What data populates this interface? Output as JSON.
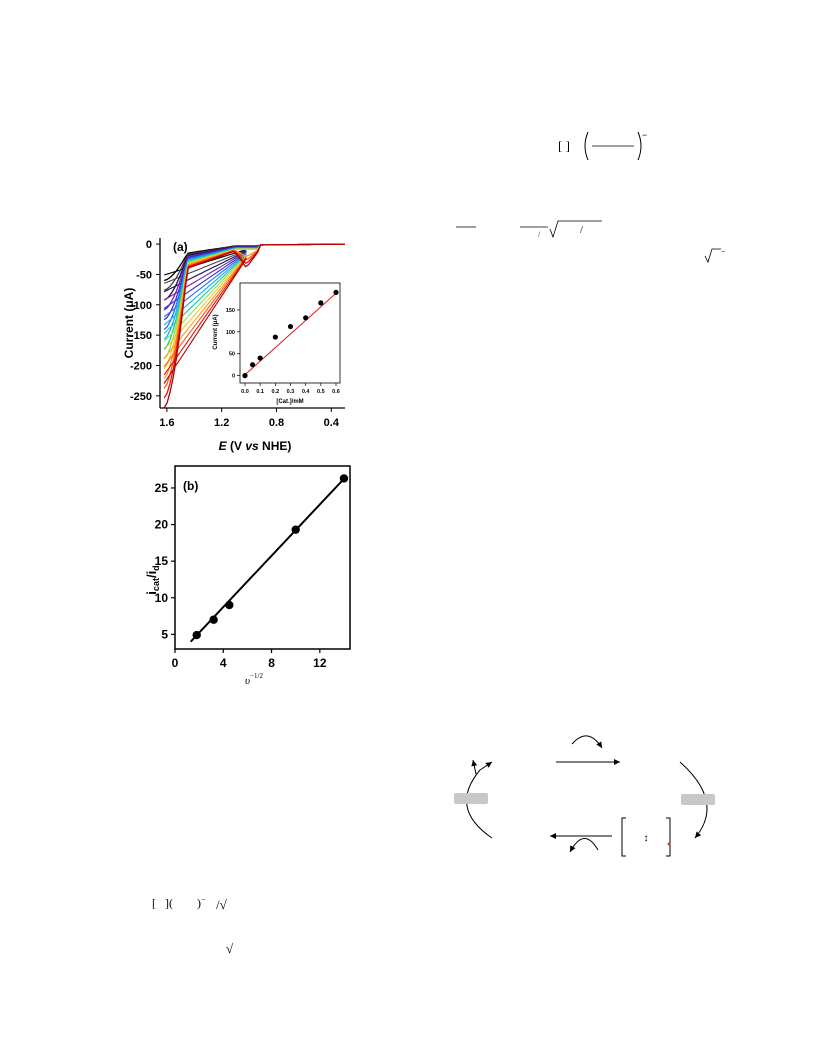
{
  "figure_a": {
    "panel_label": "(a)",
    "ylabel": "Current (μA)",
    "xlabel_prefix": "E",
    "xlabel_mid": " (V ",
    "xlabel_vs": "vs",
    "xlabel_suffix": " NHE)",
    "y_ticks": [
      "0",
      "-50",
      "-100",
      "-150",
      "-200",
      "-250"
    ],
    "x_ticks": [
      "1.6",
      "1.2",
      "0.8",
      "0.4"
    ],
    "curve_colors": [
      "#000000",
      "#444444",
      "#1a0a60",
      "#7a1fa2",
      "#3b2bd0",
      "#1c6fff",
      "#0fb0e8",
      "#18c8a8",
      "#8ee05a",
      "#f0d020",
      "#ff9a20",
      "#ff5a10",
      "#e01010",
      "#b00000"
    ],
    "inset": {
      "ylabel": "Current (μA)",
      "xlabel": "[Cat.]/mM",
      "x_ticks": [
        "0.0",
        "0.1",
        "0.2",
        "0.3",
        "0.4",
        "0.5",
        "0.6"
      ],
      "y_ticks": [
        "0",
        "50",
        "100",
        "150"
      ],
      "fit_color": "#e02020"
    }
  },
  "figure_b": {
    "panel_label": "(b)",
    "ylabel": "icat/id",
    "xlabel": "υ−1/2",
    "y_ticks": [
      "5",
      "10",
      "15",
      "20",
      "25"
    ],
    "x_ticks": [
      "0",
      "4",
      "8",
      "12"
    ]
  },
  "equations": {
    "eq1_bracket": "[   ]",
    "eq1_sup": "−",
    "eq2_frac": "/",
    "eq2_frac2": "/",
    "eq3_sup": "−",
    "eq4": "[   ](        )",
    "eq4_sup": "−",
    "eq5": "/√",
    "eq6": "√"
  },
  "scheme": {
    "left_box_color": "#c8c8c8",
    "right_box_color": "#c8c8c8",
    "bracket_arrow": "↕",
    "dot_color": "#e03020"
  },
  "chart_data": [
    {
      "type": "line",
      "title": "(a)",
      "xlabel": "E (V vs NHE)",
      "ylabel": "Current (μA)",
      "xlim": [
        1.65,
        0.3
      ],
      "ylim": [
        -270,
        10
      ],
      "note_series": "14 cyclic voltammograms at increasing catalyst concentration",
      "series": [
        {
          "values": [
            [
              1.62,
              -60
            ],
            [
              1.5,
              -35
            ],
            [
              1.4,
              -5
            ],
            [
              1.2,
              -2
            ],
            [
              1.0,
              -1
            ],
            [
              0.3,
              0
            ]
          ]
        },
        {
          "values": [
            [
              1.62,
              -270
            ],
            [
              1.55,
              -230
            ],
            [
              1.45,
              -70
            ],
            [
              1.35,
              -25
            ],
            [
              1.1,
              -15
            ],
            [
              1.02,
              -30
            ],
            [
              0.95,
              -5
            ],
            [
              0.3,
              0
            ]
          ]
        }
      ],
      "grid": false
    },
    {
      "type": "scatter",
      "title": "",
      "xlabel": "[Cat.]/mM",
      "ylabel": "Current (μA)",
      "x": [
        0.0,
        0.05,
        0.1,
        0.2,
        0.3,
        0.4,
        0.5,
        0.6
      ],
      "y": [
        0,
        25,
        40,
        88,
        112,
        132,
        166,
        190
      ],
      "xlim": [
        0,
        0.6
      ],
      "ylim": [
        -10,
        200
      ],
      "fit_line": true
    },
    {
      "type": "scatter",
      "title": "(b)",
      "xlabel": "υ−1/2",
      "ylabel": "icat/id",
      "x": [
        1.8,
        3.2,
        4.5,
        10.0,
        14.0
      ],
      "y": [
        4.9,
        7.0,
        9.0,
        19.3,
        26.3
      ],
      "xlim": [
        0,
        14.5
      ],
      "ylim": [
        3,
        28
      ],
      "fit_line": true
    }
  ]
}
